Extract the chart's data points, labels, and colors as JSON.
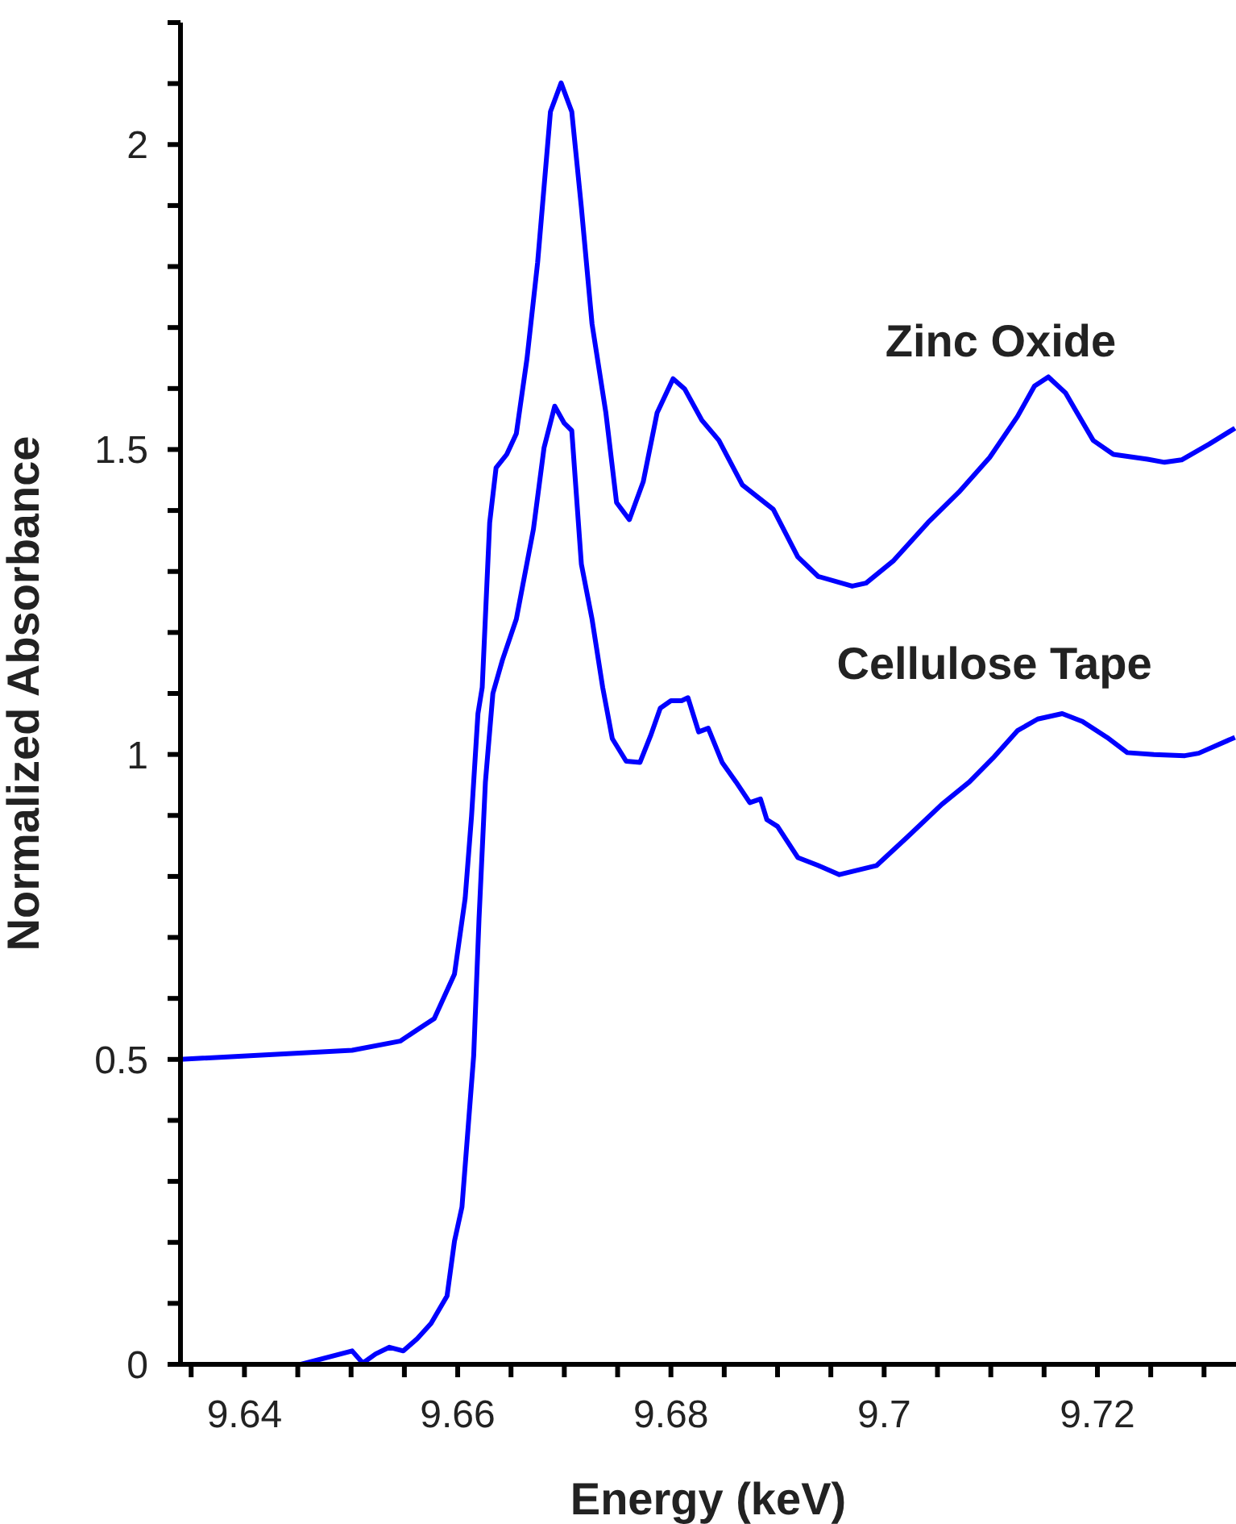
{
  "chart_data": {
    "type": "line",
    "xlabel": "Energy (keV)",
    "ylabel": "Normalized Absorbance",
    "xlim": [
      9.634,
      9.733
    ],
    "ylim": [
      0,
      2.2
    ],
    "xticks": [
      {
        "value": 9.635,
        "label": null
      },
      9.64,
      {
        "value": 9.645,
        "label": null
      },
      {
        "value": 9.65,
        "label": null
      },
      {
        "value": 9.655,
        "label": null
      },
      9.66,
      {
        "value": 9.665,
        "label": null
      },
      {
        "value": 9.67,
        "label": null
      },
      {
        "value": 9.675,
        "label": null
      },
      9.68,
      {
        "value": 9.685,
        "label": null
      },
      {
        "value": 9.69,
        "label": null
      },
      {
        "value": 9.695,
        "label": null
      },
      9.7,
      {
        "value": 9.705,
        "label": null
      },
      {
        "value": 9.71,
        "label": null
      },
      {
        "value": 9.715,
        "label": null
      },
      9.72,
      {
        "value": 9.725,
        "label": null
      },
      {
        "value": 9.73,
        "label": null
      }
    ],
    "yticks": [
      0,
      {
        "value": 0.1,
        "label": null
      },
      {
        "value": 0.2,
        "label": null
      },
      {
        "value": 0.3,
        "label": null
      },
      {
        "value": 0.4,
        "label": null
      },
      0.5,
      {
        "value": 0.6,
        "label": null
      },
      {
        "value": 0.7,
        "label": null
      },
      {
        "value": 0.8,
        "label": null
      },
      {
        "value": 0.9,
        "label": null
      },
      1,
      {
        "value": 1.1,
        "label": null
      },
      {
        "value": 1.2,
        "label": null
      },
      {
        "value": 1.3,
        "label": null
      },
      {
        "value": 1.4,
        "label": null
      },
      1.5,
      {
        "value": 1.6,
        "label": null
      },
      {
        "value": 1.7,
        "label": null
      },
      {
        "value": 1.8,
        "label": null
      },
      {
        "value": 1.9,
        "label": null
      },
      2,
      {
        "value": 2.1,
        "label": null
      },
      {
        "value": 2.2,
        "label": null
      }
    ],
    "grid": false,
    "legend": false,
    "marker": "none",
    "line_style": "solid",
    "annotations": [
      "Zinc Oxide",
      "Cellulose Tape"
    ],
    "series": [
      {
        "color": "#0000ff",
        "x": [
          9.634,
          9.6501,
          9.6546,
          9.6578,
          9.6597,
          9.6607,
          9.6613,
          9.6619,
          9.6623,
          9.663,
          9.6636,
          9.6646,
          9.6655,
          9.6665,
          9.6675,
          9.6687,
          9.6697,
          9.6707,
          9.6716,
          9.6726,
          9.6739,
          9.6749,
          9.6761,
          9.6774,
          9.6787,
          9.6802,
          9.6813,
          9.6829,
          9.6845,
          9.6867,
          9.6896,
          9.6919,
          9.6938,
          9.697,
          9.6983,
          9.7009,
          9.7041,
          9.707,
          9.7099,
          9.7125,
          9.7141,
          9.7154,
          9.717,
          9.7196,
          9.7215,
          9.7247,
          9.7263,
          9.7279,
          9.7305,
          9.7329
        ],
        "values": [
          0.5,
          0.515,
          0.53,
          0.567,
          0.64,
          0.764,
          0.899,
          1.067,
          1.11,
          1.38,
          1.47,
          1.492,
          1.526,
          1.649,
          1.807,
          2.054,
          2.101,
          2.054,
          1.897,
          1.706,
          1.56,
          1.413,
          1.385,
          1.447,
          1.56,
          1.616,
          1.599,
          1.548,
          1.515,
          1.442,
          1.402,
          1.324,
          1.292,
          1.276,
          1.281,
          1.318,
          1.38,
          1.43,
          1.487,
          1.554,
          1.604,
          1.619,
          1.593,
          1.515,
          1.492,
          1.484,
          1.479,
          1.483,
          1.509,
          1.535
        ]
      },
      {
        "color": "#0000ff",
        "x": [
          9.6453,
          9.6501,
          9.6511,
          9.6523,
          9.6536,
          9.6549,
          9.6562,
          9.6575,
          9.659,
          9.6597,
          9.6604,
          9.661,
          9.6615,
          9.662,
          9.6626,
          9.6633,
          9.6642,
          9.6655,
          9.6671,
          9.6681,
          9.6691,
          9.67,
          9.6707,
          9.6716,
          9.6726,
          9.6736,
          9.6745,
          9.6758,
          9.6771,
          9.6781,
          9.679,
          9.68,
          9.681,
          9.6816,
          9.6826,
          9.6835,
          9.6848,
          9.6861,
          9.6874,
          9.6884,
          9.689,
          9.69,
          9.6919,
          9.6938,
          9.6958,
          9.6993,
          9.7022,
          9.7054,
          9.708,
          9.7102,
          9.7125,
          9.7144,
          9.7167,
          9.7186,
          9.7209,
          9.7228,
          9.7253,
          9.7282,
          9.7295,
          9.7329
        ],
        "values": [
          0,
          0.022,
          0.002,
          0.017,
          0.028,
          0.022,
          0.042,
          0.067,
          0.112,
          0.202,
          0.258,
          0.393,
          0.506,
          0.73,
          0.955,
          1.1,
          1.155,
          1.222,
          1.369,
          1.503,
          1.571,
          1.543,
          1.531,
          1.312,
          1.222,
          1.11,
          1.026,
          0.989,
          0.987,
          1.031,
          1.076,
          1.088,
          1.088,
          1.093,
          1.037,
          1.043,
          0.987,
          0.955,
          0.921,
          0.927,
          0.893,
          0.882,
          0.831,
          0.818,
          0.803,
          0.818,
          0.865,
          0.918,
          0.955,
          0.994,
          1.039,
          1.058,
          1.067,
          1.054,
          1.028,
          1.003,
          1.0,
          0.998,
          1.002,
          1.028
        ]
      }
    ]
  }
}
